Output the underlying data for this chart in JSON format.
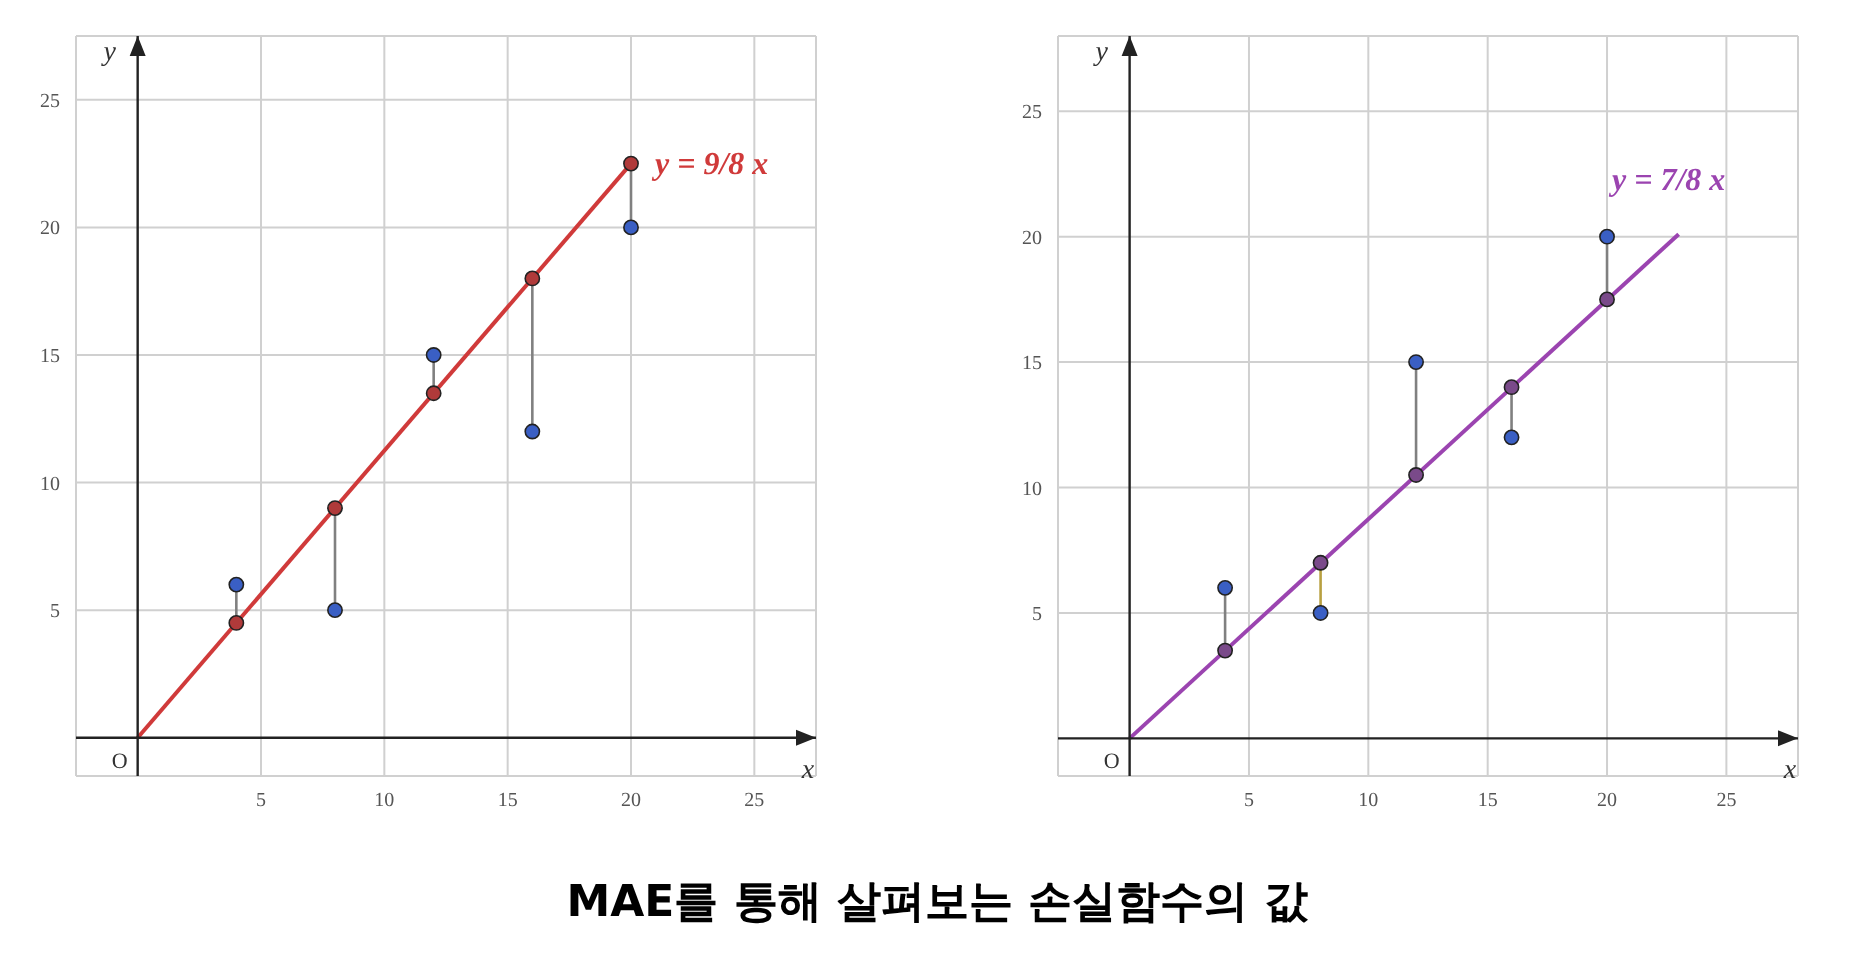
{
  "chart_data": [
    {
      "type": "scatter",
      "title": "MAE를 통해 살펴보는 손실함수의 값",
      "xlabel": "x",
      "ylabel": "y",
      "annotations": [
        "O"
      ],
      "xlim": [
        -2.5,
        27.5
      ],
      "ylim": [
        -1.5,
        27.5
      ],
      "xticks": [
        5,
        10,
        15,
        20,
        25
      ],
      "yticks": [
        5,
        10,
        15,
        20,
        25
      ],
      "grid": true,
      "series": [
        {
          "type": "line",
          "name": "y = 9/8 x",
          "color": "#d03a3a",
          "marker": "none",
          "x": [
            0,
            20
          ],
          "values": [
            0,
            22.5
          ]
        },
        {
          "type": "line",
          "color": "#808080",
          "marker": "none",
          "x": [
            4,
            4
          ],
          "values": [
            6,
            4.5
          ]
        },
        {
          "type": "line",
          "color": "#808080",
          "marker": "none",
          "x": [
            8,
            8
          ],
          "values": [
            5,
            9
          ]
        },
        {
          "type": "line",
          "color": "#808080",
          "marker": "none",
          "x": [
            12,
            12
          ],
          "values": [
            15,
            13.5
          ]
        },
        {
          "type": "line",
          "color": "#808080",
          "marker": "none",
          "x": [
            16,
            16
          ],
          "values": [
            12,
            18
          ]
        },
        {
          "type": "line",
          "color": "#808080",
          "marker": "none",
          "x": [
            20,
            20
          ],
          "values": [
            20,
            22.5
          ]
        },
        {
          "color": "#b03a3a",
          "marker": "circle",
          "x": [
            4,
            8,
            12,
            16,
            20
          ],
          "values": [
            4.5,
            9,
            13.5,
            18,
            22.5
          ]
        },
        {
          "color": "#3a5fc4",
          "marker": "circle",
          "x": [
            4,
            8,
            12,
            16,
            20
          ],
          "values": [
            6,
            5,
            15,
            12,
            20
          ]
        }
      ]
    },
    {
      "type": "scatter",
      "xlabel": "x",
      "ylabel": "y",
      "annotations": [
        "O"
      ],
      "xlim": [
        -3,
        28
      ],
      "ylim": [
        -1.5,
        28
      ],
      "xticks": [
        5,
        10,
        15,
        20,
        25
      ],
      "yticks": [
        5,
        10,
        15,
        20,
        25
      ],
      "grid": true,
      "series": [
        {
          "type": "line",
          "name": "y = 7/8 x",
          "color": "#9b44b0",
          "marker": "none",
          "x": [
            0,
            23
          ],
          "values": [
            0,
            20.1
          ]
        },
        {
          "type": "line",
          "color": "#808080",
          "marker": "none",
          "x": [
            4,
            4
          ],
          "values": [
            6,
            3.5
          ]
        },
        {
          "type": "line",
          "color": "#b8a040",
          "marker": "none",
          "x": [
            8,
            8
          ],
          "values": [
            5,
            7
          ]
        },
        {
          "type": "line",
          "color": "#808080",
          "marker": "none",
          "x": [
            12,
            12
          ],
          "values": [
            15,
            10.5
          ]
        },
        {
          "type": "line",
          "color": "#808080",
          "marker": "none",
          "x": [
            16,
            16
          ],
          "values": [
            12,
            14
          ]
        },
        {
          "type": "line",
          "color": "#808080",
          "marker": "none",
          "x": [
            20,
            20
          ],
          "values": [
            20,
            17.5
          ]
        },
        {
          "color": "#7a4a8a",
          "marker": "circle",
          "x": [
            4,
            8,
            12,
            16,
            20
          ],
          "values": [
            3.5,
            7,
            10.5,
            14,
            17.5
          ]
        },
        {
          "color": "#3a5fc4",
          "marker": "circle",
          "x": [
            4,
            8,
            12,
            16,
            20
          ],
          "values": [
            6,
            5,
            15,
            12,
            20
          ]
        }
      ]
    }
  ]
}
